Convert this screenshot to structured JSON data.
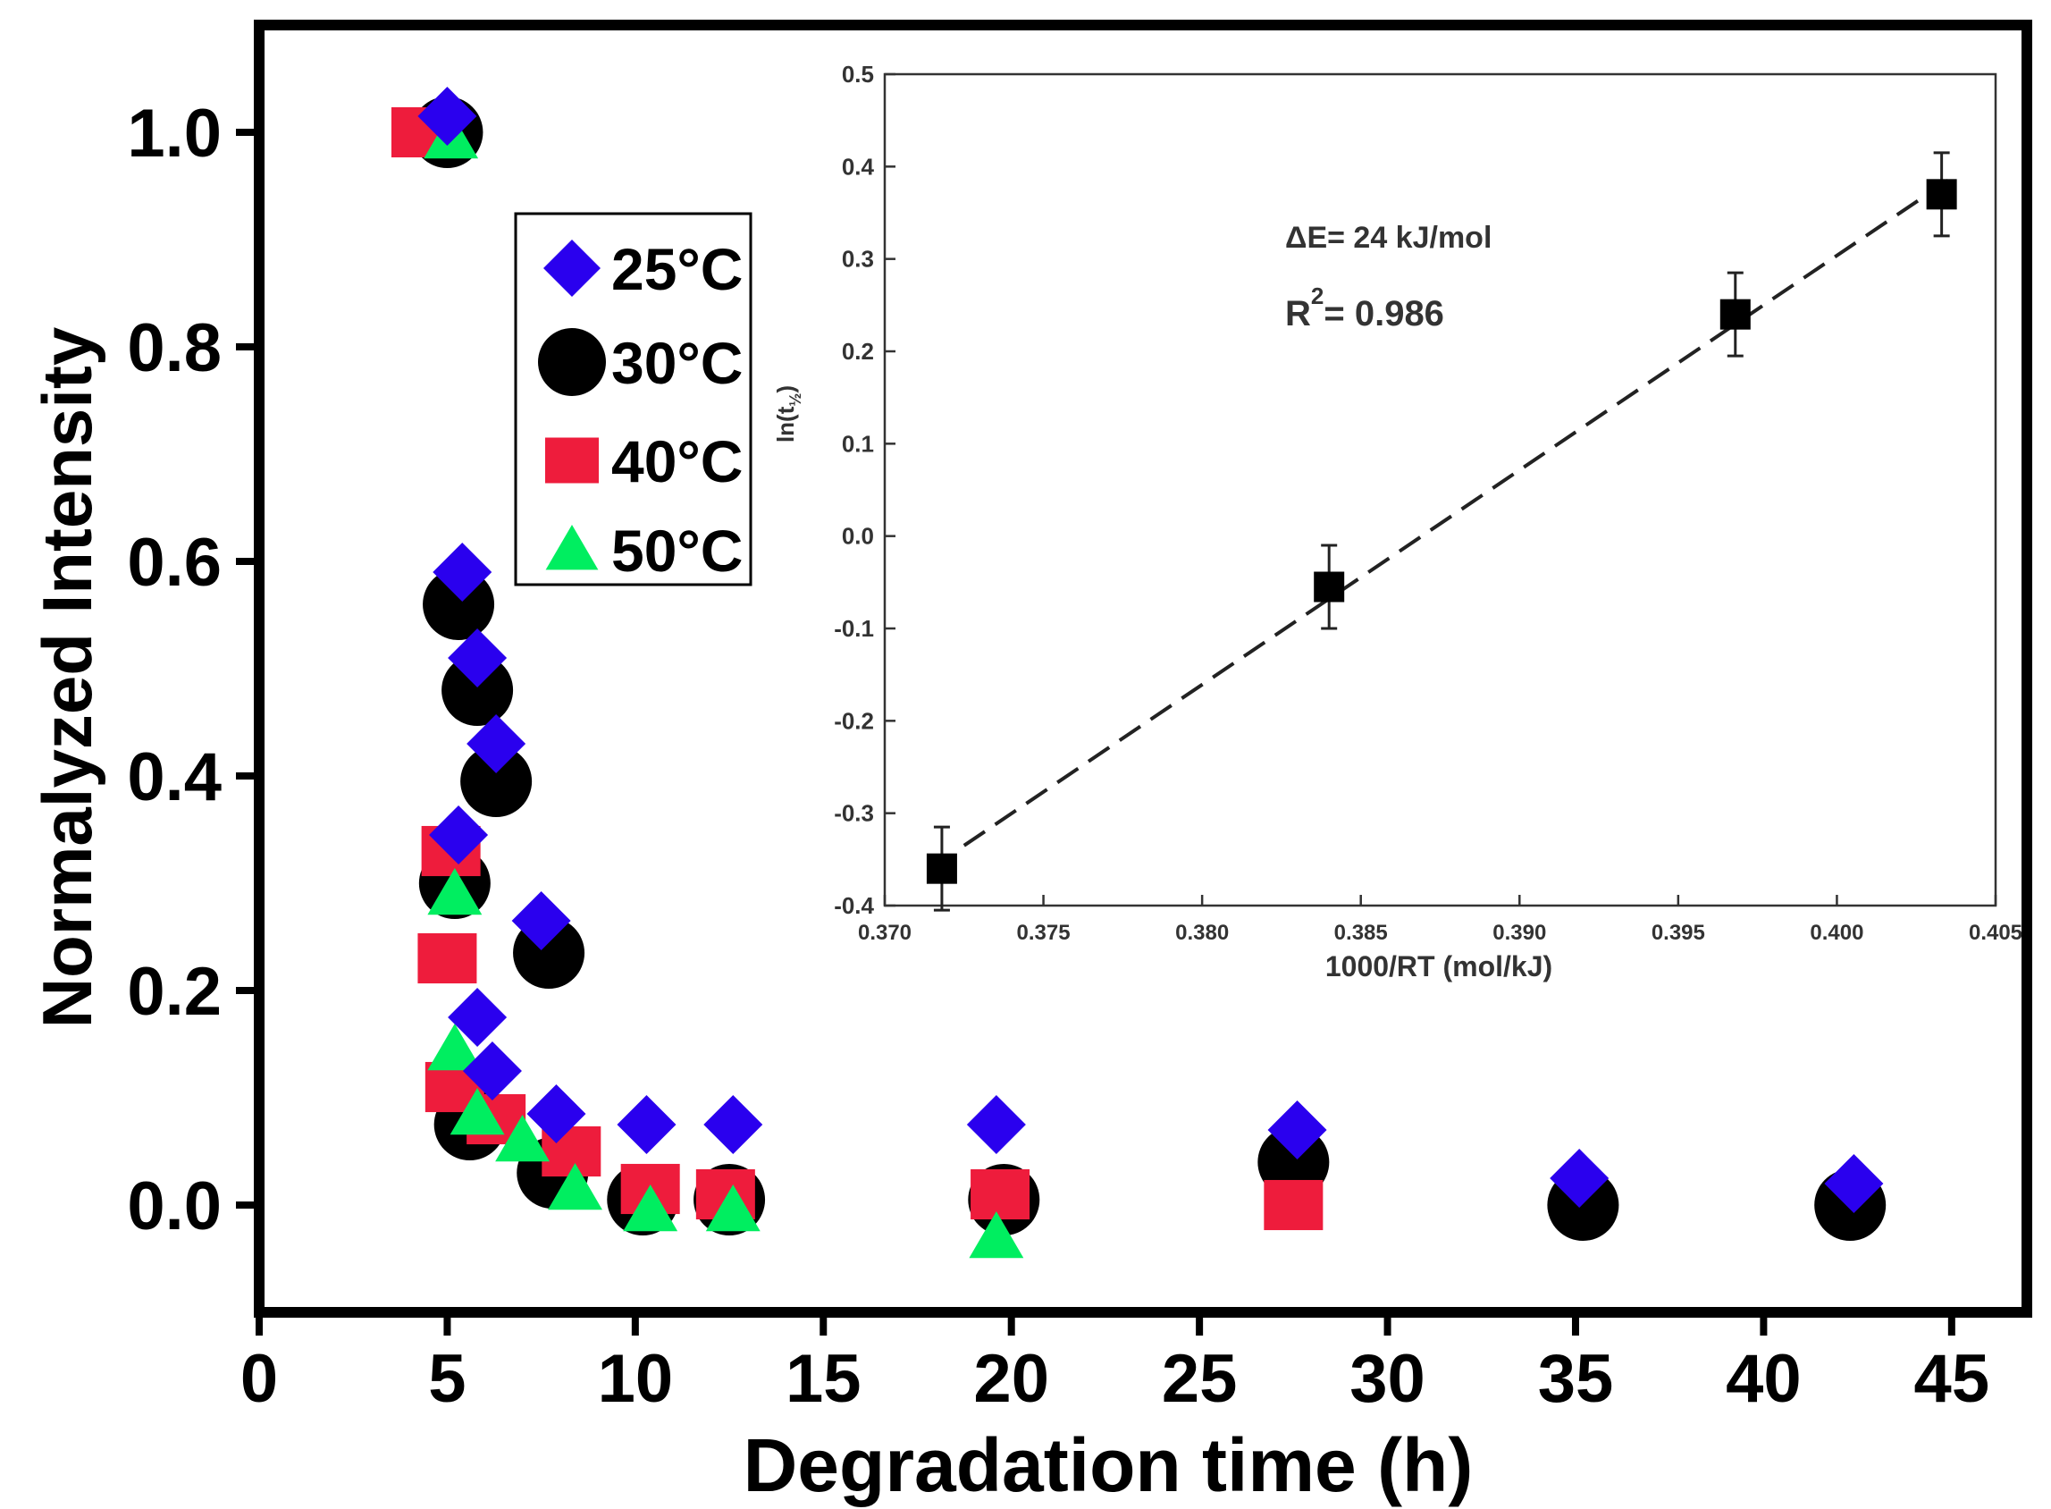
{
  "chart_data": [
    {
      "type": "scatter",
      "title": "",
      "xlabel": "Degradation time (h)",
      "ylabel": "Normalyzed Intensity",
      "xlim": [
        0,
        47
      ],
      "ylim": [
        -0.1,
        1.1
      ],
      "xticks": [
        "0",
        "5",
        "10",
        "15",
        "20",
        "25",
        "30",
        "35",
        "40",
        "45"
      ],
      "yticks": [
        "0.0",
        "0.2",
        "0.4",
        "0.6",
        "0.8",
        "1.0"
      ],
      "legend_position": "top-left inside",
      "series": [
        {
          "name": "30°C",
          "marker": "circle",
          "color": "#000000",
          "points": [
            [
              5,
              1.0
            ],
            [
              5.3,
              0.56
            ],
            [
              5.8,
              0.48
            ],
            [
              6.3,
              0.395
            ],
            [
              5.2,
              0.3
            ],
            [
              7.7,
              0.235
            ],
            [
              5.6,
              0.075
            ],
            [
              7.8,
              0.03
            ],
            [
              10.2,
              0.005
            ],
            [
              12.5,
              0.005
            ],
            [
              19.8,
              0.005
            ],
            [
              27.5,
              0.04
            ],
            [
              35.2,
              0.0
            ],
            [
              42.3,
              0.0
            ]
          ]
        },
        {
          "name": "40°C",
          "marker": "square",
          "color": "#ee1c3c",
          "points": [
            [
              4.3,
              1.0
            ],
            [
              5.1,
              0.33
            ],
            [
              5.0,
              0.23
            ],
            [
              5.2,
              0.11
            ],
            [
              6.3,
              0.08
            ],
            [
              8.3,
              0.05
            ],
            [
              10.4,
              0.015
            ],
            [
              12.4,
              0.01
            ],
            [
              19.7,
              0.01
            ],
            [
              27.5,
              0.0
            ]
          ]
        },
        {
          "name": "50°C",
          "marker": "triangle",
          "color": "#00ee60",
          "points": [
            [
              5.1,
              0.995
            ],
            [
              5.2,
              0.29
            ],
            [
              5.2,
              0.145
            ],
            [
              5.8,
              0.085
            ],
            [
              7.0,
              0.06
            ],
            [
              8.4,
              0.015
            ],
            [
              10.4,
              -0.005
            ],
            [
              12.6,
              -0.005
            ],
            [
              19.6,
              -0.03
            ]
          ]
        },
        {
          "name": "25°C",
          "marker": "diamond",
          "color": "#2a00ee",
          "points": [
            [
              5.0,
              1.015
            ],
            [
              5.4,
              0.59
            ],
            [
              5.8,
              0.51
            ],
            [
              6.3,
              0.43
            ],
            [
              5.3,
              0.345
            ],
            [
              7.5,
              0.265
            ],
            [
              5.8,
              0.175
            ],
            [
              6.2,
              0.125
            ],
            [
              7.9,
              0.085
            ],
            [
              10.3,
              0.075
            ],
            [
              12.6,
              0.075
            ],
            [
              19.6,
              0.075
            ],
            [
              27.6,
              0.07
            ],
            [
              35.1,
              0.025
            ],
            [
              42.4,
              0.02
            ]
          ]
        }
      ]
    },
    {
      "type": "scatter",
      "title": "",
      "xlabel": "1000/RT (mol/kJ)",
      "ylabel": "ln(t",
      "ylabel_sub": "½",
      "ylabel_end": ")",
      "xlim": [
        0.37,
        0.405
      ],
      "ylim": [
        -0.4,
        0.5
      ],
      "xticks": [
        "0.370",
        "0.375",
        "0.380",
        "0.385",
        "0.390",
        "0.395",
        "0.400",
        "0.405"
      ],
      "yticks": [
        "-0.4",
        "-0.3",
        "-0.2",
        "-0.1",
        "0.0",
        "0.1",
        "0.2",
        "0.3",
        "0.4",
        "0.5"
      ],
      "annotation_energy": "ΔE= 24 kJ/mol",
      "annotation_r2_prefix": "R",
      "annotation_r2_sup": "2",
      "annotation_r2_value": "= 0.986",
      "series": [
        {
          "name": "data",
          "marker": "square",
          "color": "#000000",
          "x": [
            0.3718,
            0.384,
            0.3968,
            0.4033
          ],
          "y": [
            -0.36,
            -0.055,
            0.24,
            0.37
          ],
          "yerr": [
            0.045,
            0.045,
            0.045,
            0.045
          ]
        }
      ],
      "fit": {
        "style": "dashed",
        "x": [
          0.3725,
          0.4035
        ],
        "y": [
          -0.335,
          0.385
        ]
      }
    }
  ]
}
